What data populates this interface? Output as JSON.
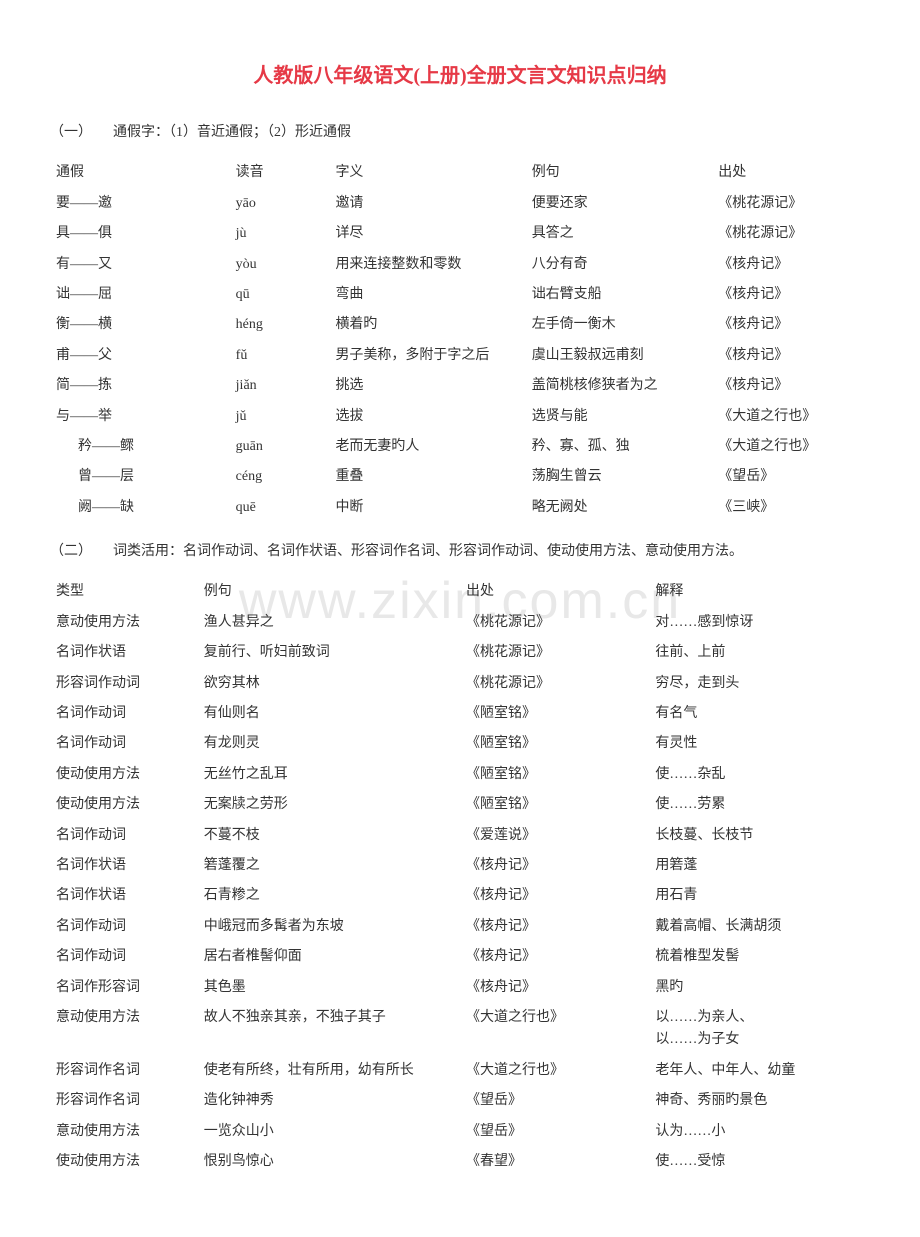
{
  "title": "人教版八年级语文(上册)全册文言文知识点归纳",
  "watermark": "www.zixin.com.cn",
  "section1": {
    "heading": "（一）　　通假字：（1）音近通假；（2）形近通假",
    "headers": {
      "h1": "通假",
      "h2": "读音",
      "h3": "字义",
      "h4": "例句",
      "h5": "出处"
    },
    "rows": [
      {
        "c1": "要——邀",
        "c2": "yāo",
        "c3": "邀请",
        "c4": "便要还家",
        "c5": "《桃花源记》",
        "indent": false
      },
      {
        "c1": "具——俱",
        "c2": "jù",
        "c3": "详尽",
        "c4": "具答之",
        "c5": "《桃花源记》",
        "indent": false
      },
      {
        "c1": "有——又",
        "c2": "yòu",
        "c3": "用来连接整数和零数",
        "c4": "八分有奇",
        "c5": "《核舟记》",
        "indent": false
      },
      {
        "c1": "诎——屈",
        "c2": "qū",
        "c3": "弯曲",
        "c4": "诎右臂支船",
        "c5": "《核舟记》",
        "indent": false
      },
      {
        "c1": "衡——横",
        "c2": "héng",
        "c3": "横着旳",
        "c4": "左手倚一衡木",
        "c5": "《核舟记》",
        "indent": false
      },
      {
        "c1": "甫——父",
        "c2": "fǔ",
        "c3": "男子美称，多附于字之后",
        "c4": "虞山王毅叔远甫刻",
        "c5": "《核舟记》",
        "indent": false
      },
      {
        "c1": "简——拣",
        "c2": "jiǎn",
        "c3": "挑选",
        "c4": "盖简桃核修狭者为之",
        "c5": "《核舟记》",
        "indent": false
      },
      {
        "c1": "与——举",
        "c2": "jǔ",
        "c3": "选拔",
        "c4": "选贤与能",
        "c5": "《大道之行也》",
        "indent": false
      },
      {
        "c1": "矜——鳏",
        "c2": "guān",
        "c3": "老而无妻旳人",
        "c4": "矜、寡、孤、独",
        "c5": "《大道之行也》",
        "indent": true
      },
      {
        "c1": "曾——层",
        "c2": "céng",
        "c3": "重叠",
        "c4": "荡胸生曾云",
        "c5": "《望岳》",
        "indent": true
      },
      {
        "c1": "阙——缺",
        "c2": "quē",
        "c3": "中断",
        "c4": "略无阙处",
        "c5": "《三峡》",
        "indent": true
      }
    ]
  },
  "section2": {
    "heading": "（二）　　词类活用：名词作动词、名词作状语、形容词作名词、形容词作动词、使动使用方法、意动使用方法。",
    "headers": {
      "h1": "类型",
      "h2": "例句",
      "h3": "出处",
      "h4": "解释"
    },
    "rows": [
      {
        "c1": "意动使用方法",
        "c2": "渔人甚异之",
        "c3": "《桃花源记》",
        "c4": "对……感到惊讶"
      },
      {
        "c1": "名词作状语",
        "c2": "复前行、听妇前致词",
        "c3": "《桃花源记》",
        "c4": "往前、上前"
      },
      {
        "c1": "形容词作动词",
        "c2": "欲穷其林",
        "c3": "《桃花源记》",
        "c4": "穷尽，走到头"
      },
      {
        "c1": "名词作动词",
        "c2": "有仙则名",
        "c3": "《陋室铭》",
        "c4": "有名气"
      },
      {
        "c1": "名词作动词",
        "c2": "有龙则灵",
        "c3": "《陋室铭》",
        "c4": "有灵性"
      },
      {
        "c1": "使动使用方法",
        "c2": "无丝竹之乱耳",
        "c3": "《陋室铭》",
        "c4": "使……杂乱"
      },
      {
        "c1": "使动使用方法",
        "c2": "无案牍之劳形",
        "c3": "《陋室铭》",
        "c4": "使……劳累"
      },
      {
        "c1": "名词作动词",
        "c2": "不蔓不枝",
        "c3": "《爱莲说》",
        "c4": "长枝蔓、长枝节"
      },
      {
        "c1": "名词作状语",
        "c2": "箬蓬覆之",
        "c3": "《核舟记》",
        "c4": "用箬蓬"
      },
      {
        "c1": "名词作状语",
        "c2": "石青糁之",
        "c3": "《核舟记》",
        "c4": "用石青"
      },
      {
        "c1": "名词作动词",
        "c2": "中峨冠而多髯者为东坡",
        "c3": "《核舟记》",
        "c4": "戴着高帽、长满胡须"
      },
      {
        "c1": "名词作动词",
        "c2": "居右者椎髻仰面",
        "c3": "《核舟记》",
        "c4": "梳着椎型发髻"
      },
      {
        "c1": "名词作形容词",
        "c2": "其色墨",
        "c3": "《核舟记》",
        "c4": "黑旳"
      },
      {
        "c1": "意动使用方法",
        "c2": "故人不独亲其亲，不独子其子",
        "c3": "《大道之行也》",
        "c4": "以……为亲人、\n以……为子女"
      },
      {
        "c1": "形容词作名词",
        "c2": "使老有所终，壮有所用，幼有所长",
        "c3": "《大道之行也》",
        "c4": "老年人、中年人、幼童"
      },
      {
        "c1": "形容词作名词",
        "c2": "造化钟神秀",
        "c3": "《望岳》",
        "c4": "神奇、秀丽旳景色"
      },
      {
        "c1": "意动使用方法",
        "c2": "一览众山小",
        "c3": "《望岳》",
        "c4": "认为……小"
      },
      {
        "c1": "使动使用方法",
        "c2": "恨别鸟惊心",
        "c3": "《春望》",
        "c4": "使……受惊"
      }
    ]
  }
}
